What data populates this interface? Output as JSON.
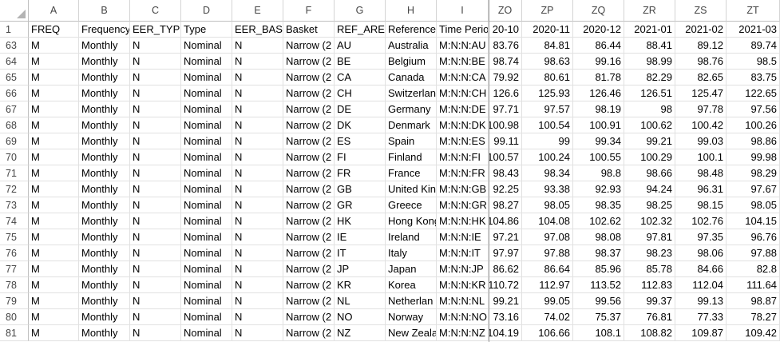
{
  "columns": [
    {
      "letter": "A"
    },
    {
      "letter": "B"
    },
    {
      "letter": "C"
    },
    {
      "letter": "D"
    },
    {
      "letter": "E"
    },
    {
      "letter": "F"
    },
    {
      "letter": "G"
    },
    {
      "letter": "H"
    },
    {
      "letter": "I"
    },
    {
      "letter": "ZO"
    },
    {
      "letter": "ZP"
    },
    {
      "letter": "ZQ"
    },
    {
      "letter": "ZR"
    },
    {
      "letter": "ZS"
    },
    {
      "letter": "ZT"
    }
  ],
  "header_row": {
    "number": "1",
    "cells": [
      "FREQ",
      "Frequency",
      "EER_TYPE",
      "Type",
      "EER_BASK",
      "Basket",
      "REF_AREA",
      "Reference",
      "Time Perio",
      "20-10",
      "2020-11",
      "2020-12",
      "2021-01",
      "2021-02",
      "2021-03"
    ]
  },
  "rows": [
    {
      "number": "63",
      "cells": [
        "M",
        "Monthly",
        "N",
        "Nominal",
        "N",
        "Narrow (2",
        "AU",
        "Australia",
        "M:N:N:AU",
        "83.76",
        "84.81",
        "86.44",
        "88.41",
        "89.12",
        "89.74"
      ]
    },
    {
      "number": "64",
      "cells": [
        "M",
        "Monthly",
        "N",
        "Nominal",
        "N",
        "Narrow (2",
        "BE",
        "Belgium",
        "M:N:N:BE",
        "98.74",
        "98.63",
        "99.16",
        "98.99",
        "98.76",
        "98.5"
      ]
    },
    {
      "number": "65",
      "cells": [
        "M",
        "Monthly",
        "N",
        "Nominal",
        "N",
        "Narrow (2",
        "CA",
        "Canada",
        "M:N:N:CA",
        "79.92",
        "80.61",
        "81.78",
        "82.29",
        "82.65",
        "83.75"
      ]
    },
    {
      "number": "66",
      "cells": [
        "M",
        "Monthly",
        "N",
        "Nominal",
        "N",
        "Narrow (2",
        "CH",
        "Switzerlan",
        "M:N:N:CH",
        "126.6",
        "125.93",
        "126.46",
        "126.51",
        "125.47",
        "122.65"
      ]
    },
    {
      "number": "67",
      "cells": [
        "M",
        "Monthly",
        "N",
        "Nominal",
        "N",
        "Narrow (2",
        "DE",
        "Germany",
        "M:N:N:DE",
        "97.71",
        "97.57",
        "98.19",
        "98",
        "97.78",
        "97.56"
      ]
    },
    {
      "number": "68",
      "cells": [
        "M",
        "Monthly",
        "N",
        "Nominal",
        "N",
        "Narrow (2",
        "DK",
        "Denmark",
        "M:N:N:DK",
        "100.98",
        "100.54",
        "100.91",
        "100.62",
        "100.42",
        "100.26"
      ]
    },
    {
      "number": "69",
      "cells": [
        "M",
        "Monthly",
        "N",
        "Nominal",
        "N",
        "Narrow (2",
        "ES",
        "Spain",
        "M:N:N:ES",
        "99.11",
        "99",
        "99.34",
        "99.21",
        "99.03",
        "98.86"
      ]
    },
    {
      "number": "70",
      "cells": [
        "M",
        "Monthly",
        "N",
        "Nominal",
        "N",
        "Narrow (2",
        "FI",
        "Finland",
        "M:N:N:FI",
        "100.57",
        "100.24",
        "100.55",
        "100.29",
        "100.1",
        "99.98"
      ]
    },
    {
      "number": "71",
      "cells": [
        "M",
        "Monthly",
        "N",
        "Nominal",
        "N",
        "Narrow (2",
        "FR",
        "France",
        "M:N:N:FR",
        "98.43",
        "98.34",
        "98.8",
        "98.66",
        "98.48",
        "98.29"
      ]
    },
    {
      "number": "72",
      "cells": [
        "M",
        "Monthly",
        "N",
        "Nominal",
        "N",
        "Narrow (2",
        "GB",
        "United Kin",
        "M:N:N:GB",
        "92.25",
        "93.38",
        "92.93",
        "94.24",
        "96.31",
        "97.67"
      ]
    },
    {
      "number": "73",
      "cells": [
        "M",
        "Monthly",
        "N",
        "Nominal",
        "N",
        "Narrow (2",
        "GR",
        "Greece",
        "M:N:N:GR",
        "98.27",
        "98.05",
        "98.35",
        "98.25",
        "98.15",
        "98.05"
      ]
    },
    {
      "number": "74",
      "cells": [
        "M",
        "Monthly",
        "N",
        "Nominal",
        "N",
        "Narrow (2",
        "HK",
        "Hong Kong",
        "M:N:N:HK",
        "104.86",
        "104.08",
        "102.62",
        "102.32",
        "102.76",
        "104.15"
      ]
    },
    {
      "number": "75",
      "cells": [
        "M",
        "Monthly",
        "N",
        "Nominal",
        "N",
        "Narrow (2",
        "IE",
        "Ireland",
        "M:N:N:IE",
        "97.21",
        "97.08",
        "98.08",
        "97.81",
        "97.35",
        "96.76"
      ]
    },
    {
      "number": "76",
      "cells": [
        "M",
        "Monthly",
        "N",
        "Nominal",
        "N",
        "Narrow (2",
        "IT",
        "Italy",
        "M:N:N:IT",
        "97.97",
        "97.88",
        "98.37",
        "98.23",
        "98.06",
        "97.88"
      ]
    },
    {
      "number": "77",
      "cells": [
        "M",
        "Monthly",
        "N",
        "Nominal",
        "N",
        "Narrow (2",
        "JP",
        "Japan",
        "M:N:N:JP",
        "86.62",
        "86.64",
        "85.96",
        "85.78",
        "84.66",
        "82.8"
      ]
    },
    {
      "number": "78",
      "cells": [
        "M",
        "Monthly",
        "N",
        "Nominal",
        "N",
        "Narrow (2",
        "KR",
        "Korea",
        "M:N:N:KR",
        "110.72",
        "112.97",
        "113.52",
        "112.83",
        "112.04",
        "111.64"
      ]
    },
    {
      "number": "79",
      "cells": [
        "M",
        "Monthly",
        "N",
        "Nominal",
        "N",
        "Narrow (2",
        "NL",
        "Netherlan",
        "M:N:N:NL",
        "99.21",
        "99.05",
        "99.56",
        "99.37",
        "99.13",
        "98.87"
      ]
    },
    {
      "number": "80",
      "cells": [
        "M",
        "Monthly",
        "N",
        "Nominal",
        "N",
        "Narrow (2",
        "NO",
        "Norway",
        "M:N:N:NO",
        "73.16",
        "74.02",
        "75.37",
        "76.81",
        "77.33",
        "78.27"
      ]
    },
    {
      "number": "81",
      "cells": [
        "M",
        "Monthly",
        "N",
        "Nominal",
        "N",
        "Narrow (2",
        "NZ",
        "New Zeala",
        "M:N:N:NZ",
        "104.19",
        "106.66",
        "108.1",
        "108.82",
        "109.87",
        "109.42"
      ]
    }
  ]
}
